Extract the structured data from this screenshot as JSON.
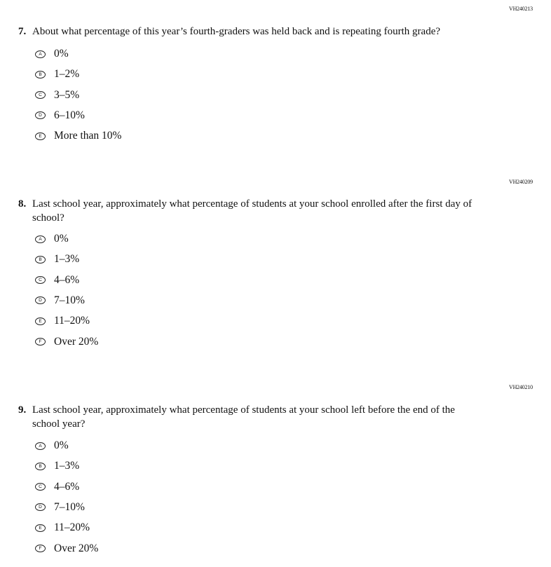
{
  "questions": [
    {
      "id": "VH240213",
      "number": "7.",
      "text": "About what percentage of this year’s fourth-graders was held back and is repeating fourth grade?",
      "options": [
        {
          "letter": "A",
          "label": "0%"
        },
        {
          "letter": "B",
          "label": "1–2%"
        },
        {
          "letter": "C",
          "label": "3–5%"
        },
        {
          "letter": "D",
          "label": "6–10%"
        },
        {
          "letter": "E",
          "label": "More than 10%"
        }
      ]
    },
    {
      "id": "VH240209",
      "number": "8.",
      "text": "Last school year, approximately what percentage of students at your school enrolled after the first day of school?",
      "options": [
        {
          "letter": "A",
          "label": "0%"
        },
        {
          "letter": "B",
          "label": "1–3%"
        },
        {
          "letter": "C",
          "label": "4–6%"
        },
        {
          "letter": "D",
          "label": "7–10%"
        },
        {
          "letter": "E",
          "label": "11–20%"
        },
        {
          "letter": "F",
          "label": "Over 20%"
        }
      ]
    },
    {
      "id": "VH240210",
      "number": "9.",
      "text": "Last school year, approximately what percentage of students at your school left before the end of the school year?",
      "options": [
        {
          "letter": "A",
          "label": "0%"
        },
        {
          "letter": "B",
          "label": "1–3%"
        },
        {
          "letter": "C",
          "label": "4–6%"
        },
        {
          "letter": "D",
          "label": "7–10%"
        },
        {
          "letter": "E",
          "label": "11–20%"
        },
        {
          "letter": "F",
          "label": "Over 20%"
        }
      ]
    }
  ]
}
